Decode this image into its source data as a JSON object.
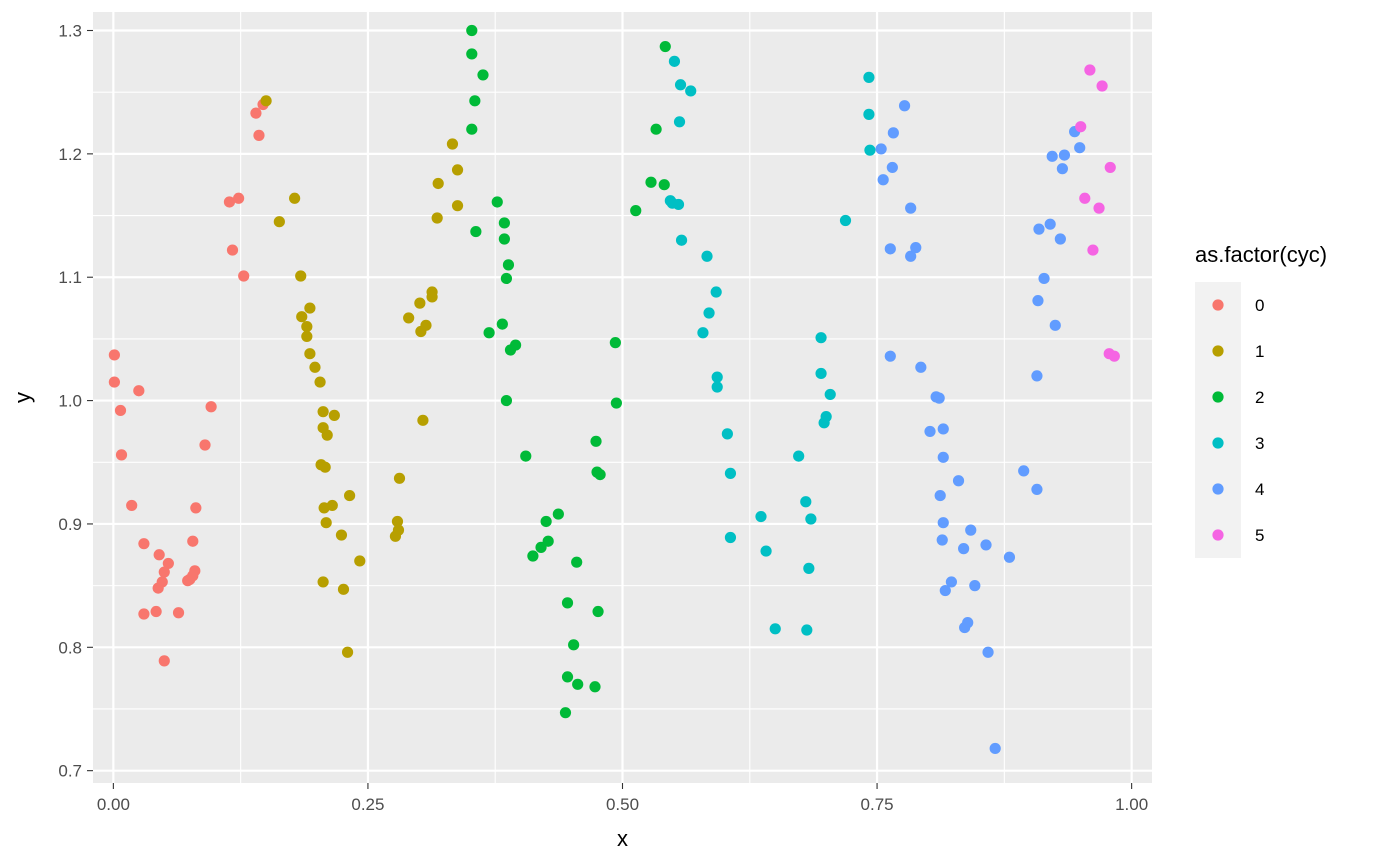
{
  "chart_data": {
    "type": "scatter",
    "xlabel": "x",
    "ylabel": "y",
    "xlim": [
      -0.02,
      1.02
    ],
    "ylim": [
      0.69,
      1.315
    ],
    "x_ticks": [
      0.0,
      0.25,
      0.5,
      0.75,
      1.0
    ],
    "x_tick_labels": [
      "0.00",
      "0.25",
      "0.50",
      "0.75",
      "1.00"
    ],
    "y_ticks": [
      0.7,
      0.8,
      0.9,
      1.0,
      1.1,
      1.2,
      1.3
    ],
    "y_tick_labels": [
      "0.7",
      "0.8",
      "0.9",
      "1.0",
      "1.1",
      "1.2",
      "1.3"
    ],
    "grid": true,
    "background": "#ebebeb",
    "legend": {
      "title": "as.factor(cyc)",
      "placement": "right"
    },
    "series": [
      {
        "name": "0",
        "color": "#F8766D",
        "points": [
          [
            0.001,
            1.037
          ],
          [
            0.001,
            1.015
          ],
          [
            0.007,
            0.992
          ],
          [
            0.008,
            0.956
          ],
          [
            0.018,
            0.915
          ],
          [
            0.025,
            1.008
          ],
          [
            0.03,
            0.884
          ],
          [
            0.03,
            0.827
          ],
          [
            0.042,
            0.829
          ],
          [
            0.044,
            0.848
          ],
          [
            0.045,
            0.875
          ],
          [
            0.048,
            0.853
          ],
          [
            0.05,
            0.861
          ],
          [
            0.05,
            0.789
          ],
          [
            0.054,
            0.868
          ],
          [
            0.064,
            0.828
          ],
          [
            0.073,
            0.854
          ],
          [
            0.075,
            0.855
          ],
          [
            0.078,
            0.858
          ],
          [
            0.078,
            0.886
          ],
          [
            0.08,
            0.862
          ],
          [
            0.081,
            0.913
          ],
          [
            0.09,
            0.964
          ],
          [
            0.096,
            0.995
          ],
          [
            0.114,
            1.161
          ],
          [
            0.117,
            1.122
          ],
          [
            0.123,
            1.164
          ],
          [
            0.128,
            1.101
          ],
          [
            0.14,
            1.233
          ],
          [
            0.143,
            1.215
          ],
          [
            0.147,
            1.24
          ]
        ]
      },
      {
        "name": "1",
        "color": "#B79F00",
        "points": [
          [
            0.15,
            1.243
          ],
          [
            0.163,
            1.145
          ],
          [
            0.178,
            1.164
          ],
          [
            0.184,
            1.101
          ],
          [
            0.185,
            1.068
          ],
          [
            0.19,
            1.06
          ],
          [
            0.19,
            1.052
          ],
          [
            0.193,
            1.075
          ],
          [
            0.193,
            1.038
          ],
          [
            0.198,
            1.027
          ],
          [
            0.203,
            1.015
          ],
          [
            0.204,
            0.948
          ],
          [
            0.206,
            0.991
          ],
          [
            0.206,
            0.978
          ],
          [
            0.206,
            0.853
          ],
          [
            0.207,
            0.913
          ],
          [
            0.208,
            0.946
          ],
          [
            0.209,
            0.901
          ],
          [
            0.21,
            0.972
          ],
          [
            0.215,
            0.915
          ],
          [
            0.217,
            0.988
          ],
          [
            0.224,
            0.891
          ],
          [
            0.226,
            0.847
          ],
          [
            0.23,
            0.796
          ],
          [
            0.232,
            0.923
          ],
          [
            0.242,
            0.87
          ],
          [
            0.277,
            0.89
          ],
          [
            0.279,
            0.902
          ],
          [
            0.28,
            0.895
          ],
          [
            0.281,
            0.937
          ],
          [
            0.29,
            1.067
          ],
          [
            0.301,
            1.079
          ],
          [
            0.302,
            1.056
          ],
          [
            0.304,
            0.984
          ],
          [
            0.307,
            1.061
          ],
          [
            0.313,
            1.088
          ],
          [
            0.313,
            1.084
          ],
          [
            0.318,
            1.148
          ],
          [
            0.319,
            1.176
          ],
          [
            0.333,
            1.208
          ],
          [
            0.338,
            1.158
          ],
          [
            0.338,
            1.187
          ]
        ]
      },
      {
        "name": "2",
        "color": "#00BA38",
        "points": [
          [
            0.352,
            1.3
          ],
          [
            0.352,
            1.281
          ],
          [
            0.352,
            1.22
          ],
          [
            0.355,
            1.243
          ],
          [
            0.356,
            1.137
          ],
          [
            0.363,
            1.264
          ],
          [
            0.369,
            1.055
          ],
          [
            0.377,
            1.161
          ],
          [
            0.382,
            1.062
          ],
          [
            0.384,
            1.144
          ],
          [
            0.384,
            1.131
          ],
          [
            0.386,
            1.099
          ],
          [
            0.386,
            1.0
          ],
          [
            0.388,
            1.11
          ],
          [
            0.39,
            1.041
          ],
          [
            0.395,
            1.045
          ],
          [
            0.405,
            0.955
          ],
          [
            0.412,
            0.874
          ],
          [
            0.42,
            0.881
          ],
          [
            0.425,
            0.902
          ],
          [
            0.427,
            0.886
          ],
          [
            0.437,
            0.908
          ],
          [
            0.444,
            0.747
          ],
          [
            0.446,
            0.836
          ],
          [
            0.446,
            0.776
          ],
          [
            0.452,
            0.802
          ],
          [
            0.455,
            0.869
          ],
          [
            0.456,
            0.77
          ],
          [
            0.473,
            0.768
          ],
          [
            0.474,
            0.967
          ],
          [
            0.475,
            0.942
          ],
          [
            0.476,
            0.829
          ],
          [
            0.478,
            0.94
          ],
          [
            0.493,
            1.047
          ],
          [
            0.494,
            0.998
          ],
          [
            0.513,
            1.154
          ],
          [
            0.528,
            1.177
          ],
          [
            0.533,
            1.22
          ],
          [
            0.541,
            1.175
          ],
          [
            0.542,
            1.287
          ]
        ]
      },
      {
        "name": "3",
        "color": "#00BFC4",
        "points": [
          [
            0.547,
            1.162
          ],
          [
            0.549,
            1.16
          ],
          [
            0.551,
            1.275
          ],
          [
            0.555,
            1.159
          ],
          [
            0.556,
            1.226
          ],
          [
            0.557,
            1.256
          ],
          [
            0.558,
            1.13
          ],
          [
            0.567,
            1.251
          ],
          [
            0.579,
            1.055
          ],
          [
            0.583,
            1.117
          ],
          [
            0.585,
            1.071
          ],
          [
            0.592,
            1.088
          ],
          [
            0.593,
            1.019
          ],
          [
            0.593,
            1.011
          ],
          [
            0.603,
            0.973
          ],
          [
            0.606,
            0.941
          ],
          [
            0.606,
            0.889
          ],
          [
            0.636,
            0.906
          ],
          [
            0.641,
            0.878
          ],
          [
            0.65,
            0.815
          ],
          [
            0.673,
            0.955
          ],
          [
            0.68,
            0.918
          ],
          [
            0.681,
            0.814
          ],
          [
            0.683,
            0.864
          ],
          [
            0.685,
            0.904
          ],
          [
            0.695,
            1.051
          ],
          [
            0.695,
            1.022
          ],
          [
            0.698,
            0.982
          ],
          [
            0.7,
            0.987
          ],
          [
            0.704,
            1.005
          ],
          [
            0.719,
            1.146
          ],
          [
            0.742,
            1.262
          ],
          [
            0.742,
            1.232
          ],
          [
            0.743,
            1.203
          ]
        ]
      },
      {
        "name": "4",
        "color": "#619CFF",
        "points": [
          [
            0.754,
            1.204
          ],
          [
            0.756,
            1.179
          ],
          [
            0.763,
            1.123
          ],
          [
            0.763,
            1.036
          ],
          [
            0.765,
            1.189
          ],
          [
            0.766,
            1.217
          ],
          [
            0.777,
            1.239
          ],
          [
            0.783,
            1.156
          ],
          [
            0.783,
            1.117
          ],
          [
            0.788,
            1.124
          ],
          [
            0.793,
            1.027
          ],
          [
            0.802,
            0.975
          ],
          [
            0.808,
            1.003
          ],
          [
            0.811,
            1.002
          ],
          [
            0.812,
            0.923
          ],
          [
            0.814,
            0.887
          ],
          [
            0.815,
            0.977
          ],
          [
            0.815,
            0.954
          ],
          [
            0.815,
            0.901
          ],
          [
            0.817,
            0.846
          ],
          [
            0.823,
            0.853
          ],
          [
            0.83,
            0.935
          ],
          [
            0.835,
            0.88
          ],
          [
            0.836,
            0.816
          ],
          [
            0.839,
            0.82
          ],
          [
            0.842,
            0.895
          ],
          [
            0.846,
            0.85
          ],
          [
            0.857,
            0.883
          ],
          [
            0.859,
            0.796
          ],
          [
            0.866,
            0.718
          ],
          [
            0.88,
            0.873
          ],
          [
            0.894,
            0.943
          ],
          [
            0.907,
            1.02
          ],
          [
            0.907,
            0.928
          ],
          [
            0.908,
            1.081
          ],
          [
            0.909,
            1.139
          ],
          [
            0.914,
            1.099
          ],
          [
            0.92,
            1.143
          ],
          [
            0.922,
            1.198
          ],
          [
            0.925,
            1.061
          ],
          [
            0.93,
            1.131
          ],
          [
            0.932,
            1.188
          ],
          [
            0.934,
            1.199
          ],
          [
            0.944,
            1.218
          ],
          [
            0.949,
            1.205
          ]
        ]
      },
      {
        "name": "5",
        "color": "#F564E3",
        "points": [
          [
            0.95,
            1.222
          ],
          [
            0.954,
            1.164
          ],
          [
            0.959,
            1.268
          ],
          [
            0.962,
            1.122
          ],
          [
            0.968,
            1.156
          ],
          [
            0.971,
            1.255
          ],
          [
            0.978,
            1.038
          ],
          [
            0.979,
            1.189
          ],
          [
            0.983,
            1.036
          ]
        ]
      }
    ]
  }
}
